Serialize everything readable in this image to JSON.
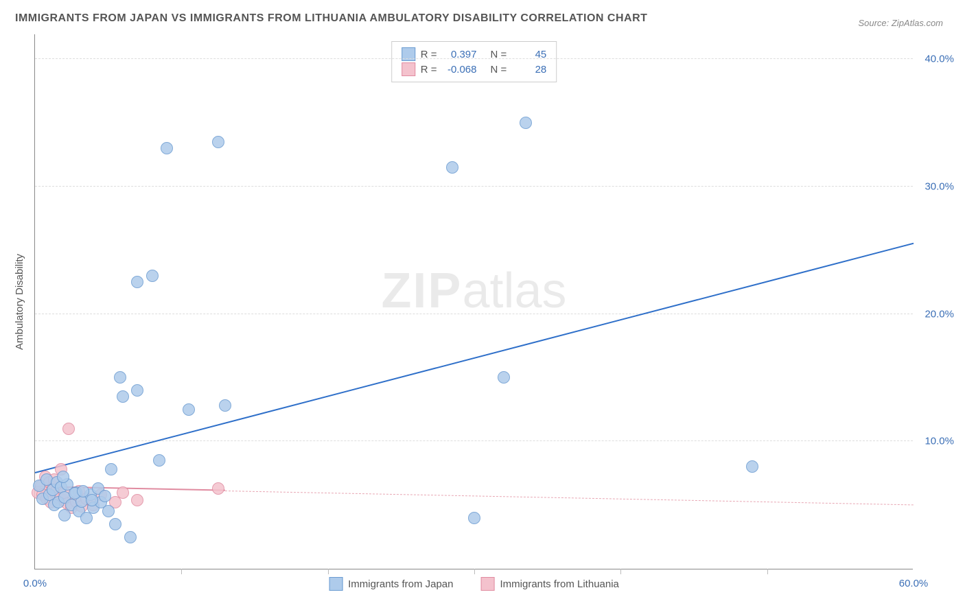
{
  "title": "IMMIGRANTS FROM JAPAN VS IMMIGRANTS FROM LITHUANIA AMBULATORY DISABILITY CORRELATION CHART",
  "source": "Source: ZipAtlas.com",
  "ylabel": "Ambulatory Disability",
  "watermark_zip": "ZIP",
  "watermark_atlas": "atlas",
  "chart": {
    "type": "scatter",
    "xlim": [
      0,
      60
    ],
    "ylim": [
      0,
      42
    ],
    "xticks": [
      0,
      60
    ],
    "xtick_labels": [
      "0.0%",
      "60.0%"
    ],
    "xminor_ticks": [
      10,
      20,
      30,
      40,
      50
    ],
    "yticks": [
      10,
      20,
      30,
      40
    ],
    "ytick_labels": [
      "10.0%",
      "20.0%",
      "30.0%",
      "40.0%"
    ],
    "grid_color": "#dddddd",
    "background_color": "#ffffff",
    "marker_radius": 9,
    "marker_stroke_width": 1,
    "series": [
      {
        "name": "Immigrants from Japan",
        "fill": "#aecbeb",
        "stroke": "#6a9bd1",
        "R": "0.397",
        "N": "45",
        "regression": {
          "x1": 0,
          "y1": 7.5,
          "x2": 60,
          "y2": 25.5,
          "color": "#2e6fc9",
          "width": 2,
          "dash": false
        },
        "points": [
          [
            0.3,
            6.5
          ],
          [
            0.5,
            5.5
          ],
          [
            0.8,
            7.0
          ],
          [
            1.0,
            5.8
          ],
          [
            1.2,
            6.2
          ],
          [
            1.3,
            5.0
          ],
          [
            1.5,
            6.8
          ],
          [
            1.6,
            5.2
          ],
          [
            1.8,
            6.4
          ],
          [
            2.0,
            5.6
          ],
          [
            2.0,
            4.2
          ],
          [
            2.5,
            5.0
          ],
          [
            2.8,
            6.0
          ],
          [
            3.0,
            4.5
          ],
          [
            3.2,
            5.3
          ],
          [
            3.5,
            4.0
          ],
          [
            3.8,
            5.8
          ],
          [
            4.0,
            4.8
          ],
          [
            4.5,
            5.2
          ],
          [
            5.0,
            4.5
          ],
          [
            5.2,
            7.8
          ],
          [
            5.5,
            3.5
          ],
          [
            5.8,
            15.0
          ],
          [
            6.0,
            13.5
          ],
          [
            6.5,
            2.5
          ],
          [
            7.0,
            14.0
          ],
          [
            7.0,
            22.5
          ],
          [
            8.0,
            23.0
          ],
          [
            8.5,
            8.5
          ],
          [
            9.0,
            33.0
          ],
          [
            10.5,
            12.5
          ],
          [
            12.5,
            33.5
          ],
          [
            13.0,
            12.8
          ],
          [
            28.5,
            31.5
          ],
          [
            30.0,
            4.0
          ],
          [
            32.0,
            15.0
          ],
          [
            33.5,
            35.0
          ],
          [
            49.0,
            8.0
          ],
          [
            2.2,
            6.6
          ],
          [
            2.7,
            5.9
          ],
          [
            3.3,
            6.1
          ],
          [
            3.9,
            5.4
          ],
          [
            4.3,
            6.3
          ],
          [
            4.8,
            5.7
          ],
          [
            1.9,
            7.2
          ]
        ]
      },
      {
        "name": "Immigrants from Lithuania",
        "fill": "#f4c2cd",
        "stroke": "#e08ba0",
        "R": "-0.068",
        "N": "28",
        "regression_solid": {
          "x1": 0,
          "y1": 6.4,
          "x2": 13,
          "y2": 6.1,
          "color": "#e08ba0",
          "width": 2,
          "dash": false
        },
        "regression_dash": {
          "x1": 13,
          "y1": 6.1,
          "x2": 60,
          "y2": 5.0,
          "color": "#e8a6b3",
          "width": 1,
          "dash": true
        },
        "points": [
          [
            0.2,
            6.0
          ],
          [
            0.4,
            6.5
          ],
          [
            0.5,
            5.8
          ],
          [
            0.7,
            7.2
          ],
          [
            0.8,
            5.5
          ],
          [
            1.0,
            6.8
          ],
          [
            1.1,
            5.2
          ],
          [
            1.2,
            6.4
          ],
          [
            1.3,
            7.0
          ],
          [
            1.4,
            5.9
          ],
          [
            1.5,
            6.2
          ],
          [
            1.6,
            5.6
          ],
          [
            1.8,
            7.8
          ],
          [
            1.9,
            5.4
          ],
          [
            2.0,
            6.0
          ],
          [
            2.2,
            5.1
          ],
          [
            2.3,
            11.0
          ],
          [
            2.5,
            4.8
          ],
          [
            2.8,
            5.3
          ],
          [
            3.0,
            6.1
          ],
          [
            3.2,
            4.9
          ],
          [
            3.5,
            5.5
          ],
          [
            4.0,
            5.0
          ],
          [
            4.5,
            5.8
          ],
          [
            5.5,
            5.2
          ],
          [
            6.0,
            6.0
          ],
          [
            7.0,
            5.4
          ],
          [
            12.5,
            6.3
          ]
        ]
      }
    ]
  },
  "legend": {
    "series1_label": "Immigrants from Japan",
    "series2_label": "Immigrants from Lithuania"
  },
  "stats_labels": {
    "R": "R =",
    "N": "N ="
  },
  "colors": {
    "text_primary": "#555555",
    "text_axis": "#3b6fb6"
  }
}
